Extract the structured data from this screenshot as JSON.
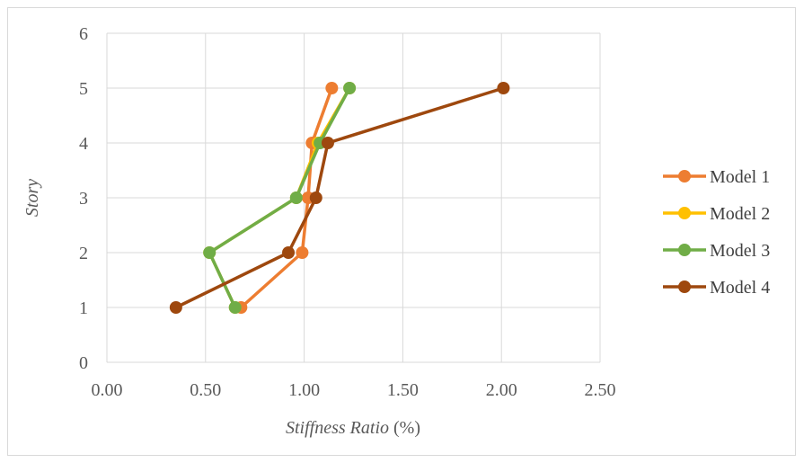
{
  "chart_data": {
    "type": "line",
    "xlabel_italic": "Stiffness Ratio",
    "xlabel_unit": " (%)",
    "ylabel": "Story",
    "xlim": [
      0,
      2.5
    ],
    "ylim": [
      0,
      6
    ],
    "x_ticks": [
      "0.00",
      "0.50",
      "1.00",
      "1.50",
      "2.00",
      "2.50"
    ],
    "y_ticks": [
      "0",
      "1",
      "2",
      "3",
      "4",
      "5",
      "6"
    ],
    "grid": true,
    "legend_position": "right",
    "series": [
      {
        "name": "Model 1",
        "color": "#ED7D31",
        "points": [
          [
            0.68,
            1
          ],
          [
            0.99,
            2
          ],
          [
            1.02,
            3
          ],
          [
            1.04,
            4
          ],
          [
            1.14,
            5
          ]
        ]
      },
      {
        "name": "Model 2",
        "color": "#FFC000",
        "points": [
          [
            0.65,
            1
          ],
          [
            0.52,
            2
          ],
          [
            0.96,
            3
          ],
          [
            1.07,
            4
          ],
          [
            1.23,
            5
          ]
        ]
      },
      {
        "name": "Model 3",
        "color": "#70AD47",
        "points": [
          [
            0.65,
            1
          ],
          [
            0.52,
            2
          ],
          [
            0.96,
            3
          ],
          [
            1.08,
            4
          ],
          [
            1.23,
            5
          ]
        ]
      },
      {
        "name": "Model 4",
        "color": "#9E480E",
        "points": [
          [
            0.35,
            1
          ],
          [
            0.92,
            2
          ],
          [
            1.06,
            3
          ],
          [
            1.12,
            4
          ],
          [
            2.01,
            5
          ]
        ]
      }
    ]
  }
}
